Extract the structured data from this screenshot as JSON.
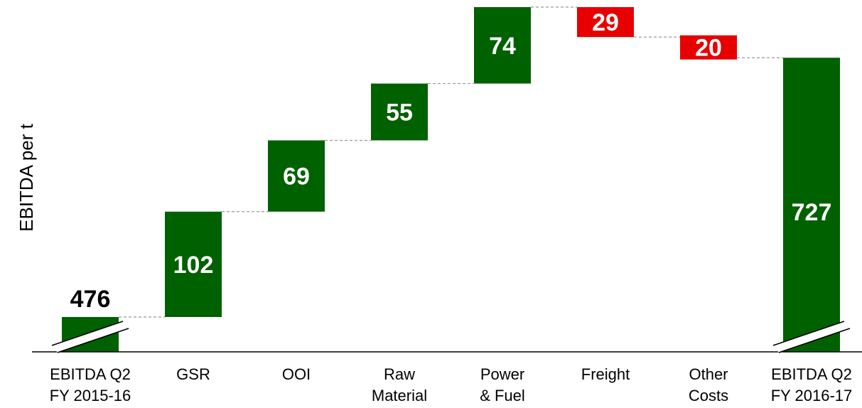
{
  "chart_data": {
    "type": "bar",
    "subtype": "waterfall",
    "ylabel": "EBITDA per t",
    "xlabel": "",
    "title": "",
    "grid": false,
    "legend": "none",
    "axis_break": true,
    "categories": [
      [
        "EBITDA Q2",
        "FY 2015-16"
      ],
      [
        "GSR"
      ],
      [
        "OOI"
      ],
      [
        "Raw",
        "Material"
      ],
      [
        "Power",
        "& Fuel"
      ],
      [
        "Freight"
      ],
      [
        "Other",
        "Costs"
      ],
      [
        "EBITDA Q2",
        "FY 2016-17"
      ]
    ],
    "values": [
      476,
      102,
      69,
      55,
      74,
      -29,
      -20,
      727
    ],
    "labels": [
      "476",
      "102",
      "69",
      "55",
      "74",
      "29",
      "20",
      "727"
    ],
    "kinds": [
      "total",
      "delta",
      "delta",
      "delta",
      "delta",
      "delta",
      "delta",
      "total"
    ],
    "colors": {
      "increase": "#006100",
      "decrease": "#e80000",
      "total": "#006100"
    }
  }
}
